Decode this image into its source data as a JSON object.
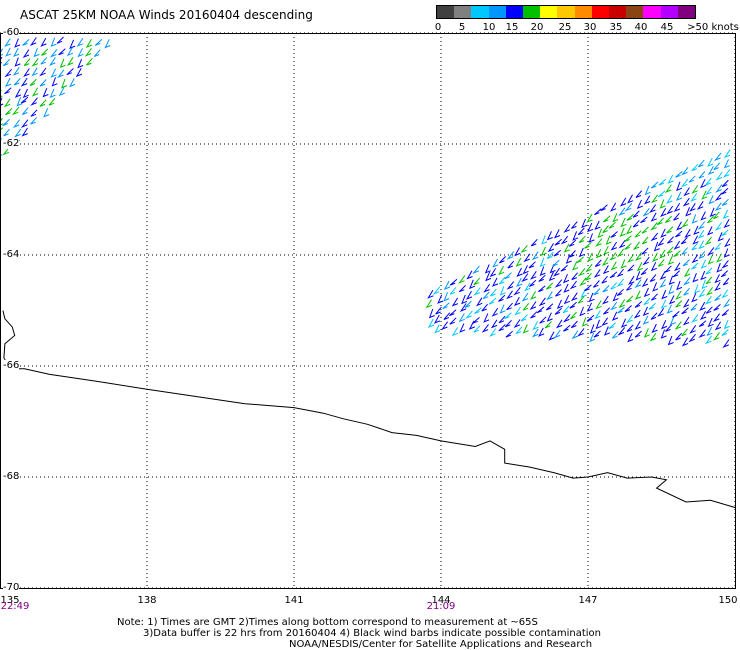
{
  "title": "ASCAT 25KM NOAA Winds 20160404 descending",
  "colorbar": {
    "colors": [
      "#404040",
      "#808080",
      "#00c8ff",
      "#0096ff",
      "#0000ff",
      "#00c000",
      "#ffff00",
      "#ffc800",
      "#ff8c00",
      "#ff0000",
      "#c80000",
      "#8b4513",
      "#ff00ff",
      "#b400ff",
      "#800080"
    ],
    "labels": [
      "0",
      "5",
      "10",
      "15",
      "20",
      "25",
      "30",
      "35",
      "40",
      "45",
      ">50 knots"
    ]
  },
  "map": {
    "lon_range": [
      135,
      150
    ],
    "lat_range": [
      -70,
      -60
    ],
    "lat_labels": [
      "-60",
      "-62",
      "-64",
      "-66",
      "-68",
      "-70"
    ],
    "lon_labels": [
      "135",
      "138",
      "141",
      "144",
      "147",
      "150"
    ],
    "times": [
      {
        "lon": 135,
        "label": "22:49"
      },
      {
        "lon": 144,
        "label": "21:09"
      }
    ],
    "coastline": [
      [
        135.06,
        -65.0
      ],
      [
        135.1,
        -65.15
      ],
      [
        135.25,
        -65.3
      ],
      [
        135.3,
        -65.45
      ],
      [
        135.1,
        -65.6
      ],
      [
        135.08,
        -65.85
      ],
      [
        135.2,
        -66.05
      ],
      [
        135.5,
        -66.05
      ],
      [
        136.0,
        -66.15
      ],
      [
        137.0,
        -66.28
      ],
      [
        138.0,
        -66.42
      ],
      [
        139.0,
        -66.55
      ],
      [
        140.0,
        -66.68
      ],
      [
        141.0,
        -66.75
      ],
      [
        141.6,
        -66.85
      ],
      [
        142.0,
        -66.95
      ],
      [
        142.5,
        -67.05
      ],
      [
        143.0,
        -67.2
      ],
      [
        143.5,
        -67.25
      ],
      [
        144.0,
        -67.35
      ],
      [
        144.7,
        -67.45
      ],
      [
        145.0,
        -67.35
      ],
      [
        145.3,
        -67.5
      ],
      [
        145.3,
        -67.75
      ],
      [
        145.8,
        -67.82
      ],
      [
        146.3,
        -67.92
      ],
      [
        146.7,
        -68.02
      ],
      [
        147.0,
        -68.0
      ],
      [
        147.4,
        -67.92
      ],
      [
        147.8,
        -68.02
      ],
      [
        148.3,
        -68.0
      ],
      [
        148.6,
        -68.05
      ],
      [
        148.4,
        -68.2
      ],
      [
        149.0,
        -68.45
      ],
      [
        149.5,
        -68.42
      ],
      [
        150.0,
        -68.55
      ]
    ],
    "wind_regions": [
      {
        "lon": [
          135.0,
          137.4
        ],
        "lat": [
          -62.3,
          -60.0
        ],
        "edge": "nw"
      },
      {
        "lon": [
          143.8,
          150.0
        ],
        "lat": [
          -65.8,
          -62.0
        ],
        "edge": "ne"
      }
    ]
  },
  "notes": [
    "Note: 1) Times are GMT 2)Times along bottom correspond to measurement at ~65S",
    "3)Data buffer is 22 hrs from 20160404 4) Black wind barbs indicate possible contamination",
    "NOAA/NESDIS/Center for Satellite Applications and Research"
  ]
}
